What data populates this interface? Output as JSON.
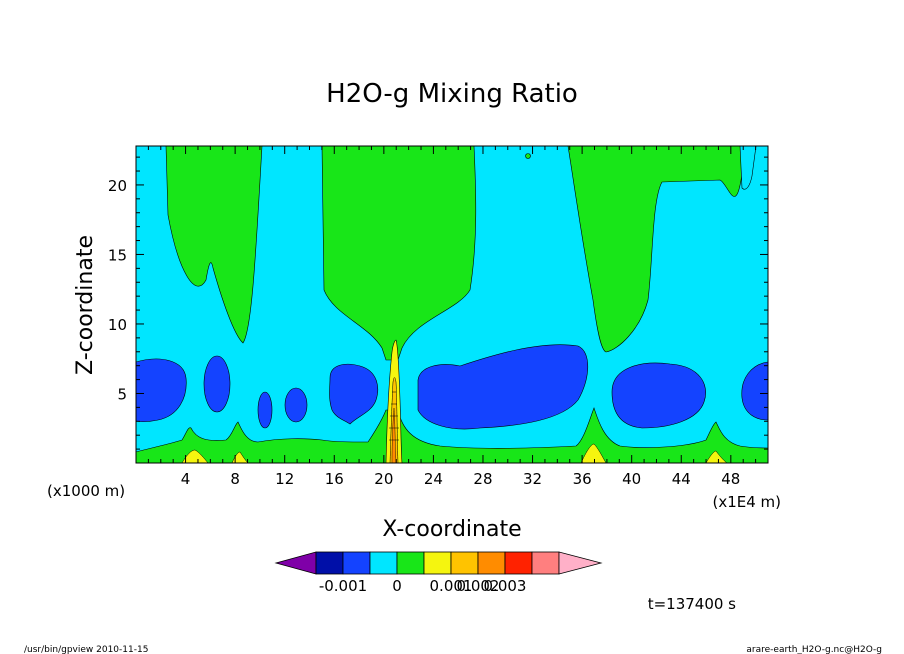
{
  "chart_data": {
    "type": "contour",
    "title": "H2O-g Mixing Ratio",
    "xlabel": "X-coordinate",
    "ylabel": "Z-coordinate",
    "x_unit_left": "(x1000 m)",
    "x_unit_right": "(x1E4 m)",
    "xlim": [
      0,
      51
    ],
    "ylim": [
      0,
      22.8
    ],
    "x_ticks": [
      4,
      8,
      12,
      16,
      20,
      24,
      28,
      32,
      36,
      40,
      44,
      48
    ],
    "y_ticks": [
      5,
      10,
      15,
      20
    ],
    "levels": [
      -0.001,
      0,
      0.001,
      0.002,
      0.003
    ],
    "level_labels": [
      "-0.001",
      "0",
      "0.001",
      "0.002",
      "0.003"
    ],
    "palette": [
      "#7f00a8",
      "#000fa8",
      "#1443ff",
      "#00e6ff",
      "#18e618",
      "#f5f50f",
      "#ffc300",
      "#ff8c00",
      "#ff2200",
      "#ff7f7f",
      "#ffb0c8"
    ],
    "background_color": "#00e6ff",
    "regions": {
      "dry_band": {
        "color": "#1443ff",
        "blobs": [
          {
            "x": 3,
            "z": 5
          },
          {
            "x": 6.5,
            "z": 5.5
          },
          {
            "x": 10.5,
            "z": 3.8
          },
          {
            "x": 13,
            "z": 4.2
          },
          {
            "x": 17,
            "z": 5
          },
          {
            "x": 31,
            "z": 5.5
          },
          {
            "x": 42.5,
            "z": 5
          },
          {
            "x": 50.5,
            "z": 5.3
          }
        ]
      },
      "moist_columns": {
        "color": "#18e618",
        "columns": [
          {
            "x_from": 2.5,
            "x_to": 10,
            "z_bottom": 8.5
          },
          {
            "x_from": 15,
            "x_to": 27,
            "z_bottom": 8
          },
          {
            "x_from": 36,
            "x_to": 42,
            "z_bottom": 8.5
          },
          {
            "x_from": 48.5,
            "x_to": 49.5,
            "z_bottom": 20
          }
        ]
      },
      "surface_maxima": {
        "color": "#f5f50f",
        "peaks": [
          {
            "x": 4.5,
            "z": 0.7
          },
          {
            "x": 8.3,
            "z": 0.6
          },
          {
            "x": 21,
            "z": 8.8
          },
          {
            "x": 37.2,
            "z": 1.5
          },
          {
            "x": 46.2,
            "z": 0.8
          }
        ]
      }
    },
    "time_label": "t=137400 s"
  },
  "footer": {
    "left": "/usr/bin/gpview   2010-11-15",
    "right": "arare-earth_H2O-g.nc@H2O-g"
  }
}
